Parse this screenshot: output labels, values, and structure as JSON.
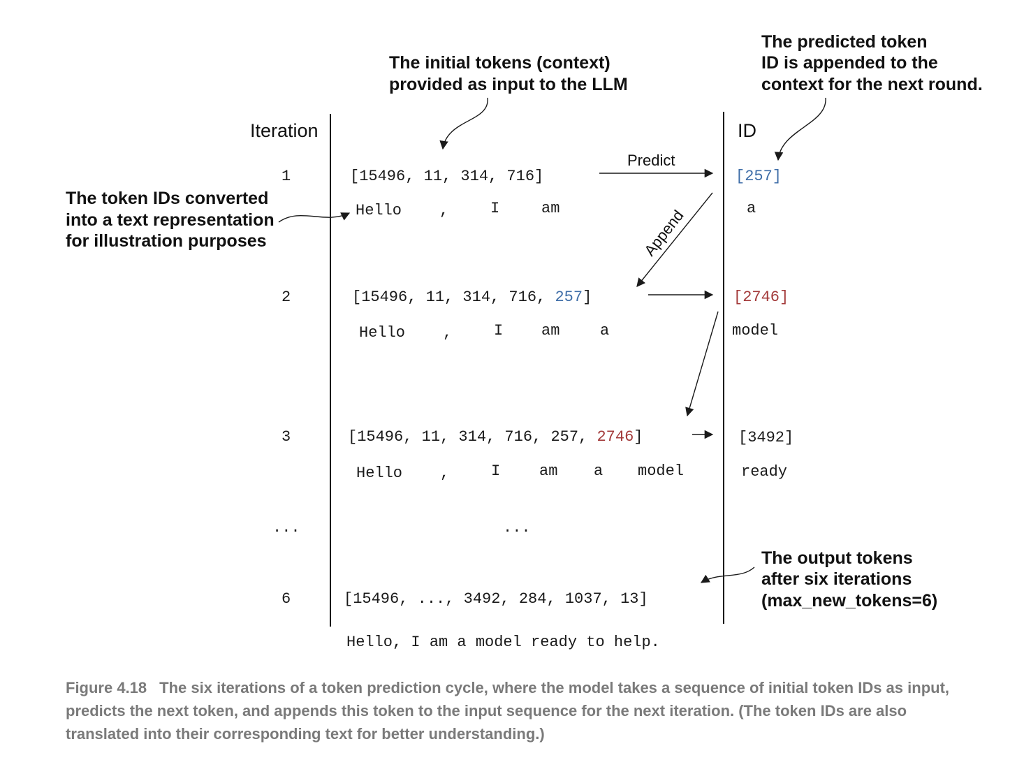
{
  "colors": {
    "blue_token": "#3f6ea8",
    "red_token": "#a33a3a",
    "text": "#1a1a1a",
    "caption": "#7a7a7a"
  },
  "headers": {
    "iteration": "Iteration",
    "id": "ID"
  },
  "arrow_labels": {
    "predict": "Predict",
    "append": "Append"
  },
  "rows": {
    "r1": {
      "iteration": "1",
      "ids_prefix": "[15496, 11, 314, 716]",
      "words": [
        "Hello",
        ",",
        "I",
        "am"
      ],
      "predicted_id": "[257]",
      "predicted_word": "a"
    },
    "r2": {
      "iteration": "2",
      "ids_prefix": "[15496, 11, 314, 716, ",
      "ids_highlight": "257",
      "ids_suffix": "]",
      "words": [
        "Hello",
        ",",
        "I",
        "am",
        "a"
      ],
      "predicted_id": "[2746]",
      "predicted_word": "model"
    },
    "r3": {
      "iteration": "3",
      "ids_prefix": "[15496, 11, 314, 716, 257, ",
      "ids_highlight": "2746",
      "ids_suffix": "]",
      "words": [
        "Hello",
        ",",
        "I",
        "am",
        "a",
        "model"
      ],
      "predicted_id": "[3492]",
      "predicted_word": "ready"
    },
    "ellipsis": {
      "iteration": "...",
      "middle": "..."
    },
    "r6": {
      "iteration": "6",
      "ids": "[15496, ..., 3492, 284, 1037, 13]",
      "text": "Hello, I am a model ready to help."
    }
  },
  "callouts": {
    "initial_tokens": [
      "The initial tokens (context)",
      "provided as input to the LLM"
    ],
    "predicted_token": [
      "The predicted token",
      "ID is appended to the",
      "context for the next round."
    ],
    "text_representation": [
      "The token IDs converted",
      "into a text representation",
      "for illustration purposes"
    ],
    "output_tokens": [
      "The output tokens",
      "after six iterations",
      "(max_new_tokens=6)"
    ]
  },
  "caption": {
    "figure_number": "Figure 4.18",
    "text": "The six iterations of a token prediction cycle, where the model takes a sequence of initial token IDs as input, predicts the next token, and appends this token to the input sequence for the next iteration. (The token IDs are also translated into their corresponding text for better understanding.)"
  }
}
